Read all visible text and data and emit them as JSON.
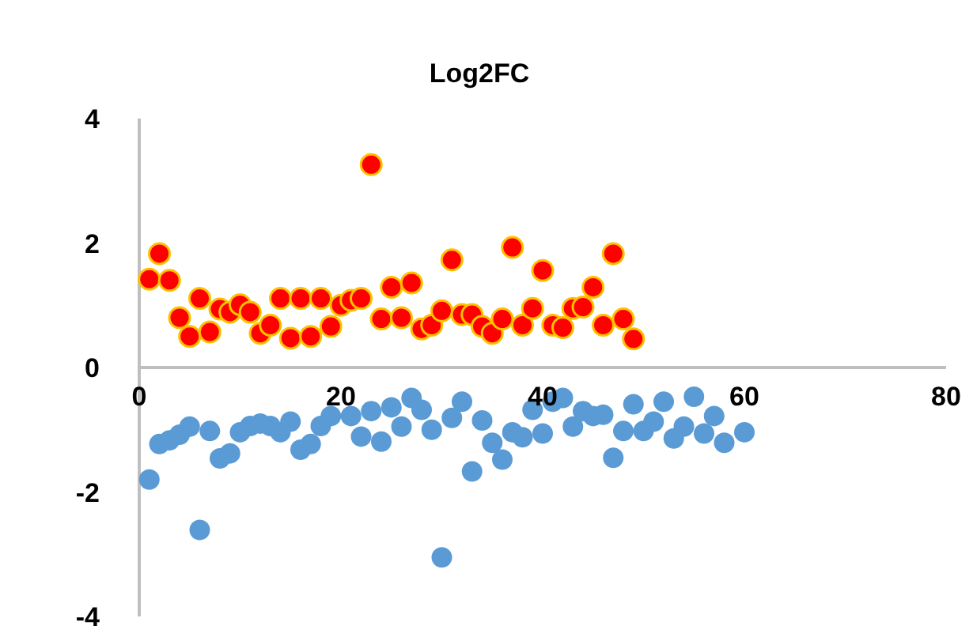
{
  "chart_data": {
    "type": "scatter",
    "title": "Log2FC",
    "marker": "circle",
    "grid": false,
    "xlim": [
      0,
      80
    ],
    "xticks": [
      0,
      20,
      40,
      60,
      80
    ],
    "ylim": [
      -4,
      4
    ],
    "yticks": [
      -4,
      -2,
      0,
      2,
      4
    ],
    "series": [
      {
        "color": "#ff0000",
        "x": [
          1,
          2,
          3,
          4,
          5,
          6,
          7,
          8,
          9,
          10,
          11,
          12,
          13,
          14,
          15,
          16,
          17,
          18,
          19,
          20,
          21,
          22,
          23,
          24,
          25,
          26,
          27,
          28,
          29,
          30,
          31,
          32,
          33,
          34,
          35,
          36,
          37,
          38,
          39,
          40,
          41,
          42,
          43,
          44,
          45,
          46,
          47,
          48,
          49
        ],
        "values": [
          1.42,
          1.83,
          1.4,
          0.8,
          0.5,
          1.11,
          0.57,
          0.94,
          0.89,
          1.01,
          0.89,
          0.55,
          0.68,
          1.11,
          0.47,
          1.11,
          0.5,
          1.11,
          0.66,
          1.0,
          1.08,
          1.11,
          3.26,
          0.78,
          1.29,
          0.8,
          1.36,
          0.62,
          0.68,
          0.91,
          1.73,
          0.85,
          0.85,
          0.66,
          0.55,
          0.78,
          1.93,
          0.68,
          0.95,
          1.56,
          0.68,
          0.64,
          0.95,
          0.97,
          1.29,
          0.68,
          1.83,
          0.78,
          0.46
        ]
      },
      {
        "color": "#5b9bd5",
        "x": [
          1,
          2,
          3,
          4,
          5,
          6,
          7,
          8,
          9,
          10,
          11,
          12,
          13,
          14,
          15,
          16,
          17,
          18,
          19,
          21,
          22,
          23,
          24,
          25,
          26,
          27,
          28,
          29,
          30,
          31,
          32,
          33,
          34,
          35,
          36,
          37,
          38,
          39,
          40,
          41,
          42,
          43,
          44,
          45,
          46,
          47,
          48,
          49,
          50,
          51,
          52,
          53,
          54,
          55,
          56,
          57,
          58,
          60
        ],
        "values": [
          -1.8,
          -1.23,
          -1.17,
          -1.08,
          -0.95,
          -2.61,
          -1.02,
          -1.46,
          -1.38,
          -1.04,
          -0.94,
          -0.9,
          -0.94,
          -1.04,
          -0.87,
          -1.32,
          -1.23,
          -0.94,
          -0.78,
          -0.78,
          -1.11,
          -0.7,
          -1.19,
          -0.64,
          -0.95,
          -0.49,
          -0.68,
          -1.0,
          -3.05,
          -0.81,
          -0.55,
          -1.67,
          -0.85,
          -1.21,
          -1.48,
          -1.04,
          -1.12,
          -0.68,
          -1.06,
          -0.55,
          -0.49,
          -0.95,
          -0.7,
          -0.78,
          -0.76,
          -1.45,
          -1.02,
          -0.59,
          -1.02,
          -0.87,
          -0.55,
          -1.14,
          -0.95,
          -0.47,
          -1.06,
          -0.78,
          -1.21,
          -1.04
        ]
      }
    ]
  }
}
